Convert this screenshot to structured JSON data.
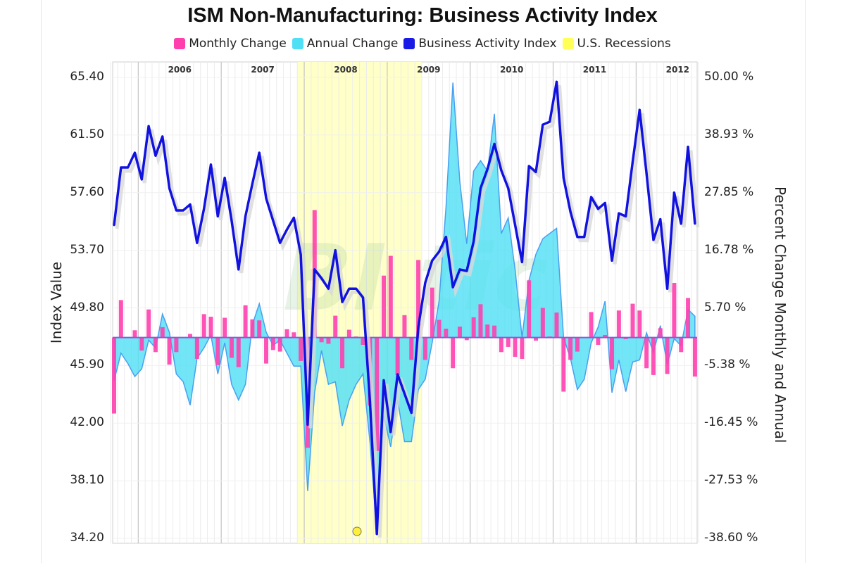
{
  "chart_data": {
    "type": "bar+area+line",
    "title": "ISM Non-Manufacturing: Business Activity Index",
    "legend": [
      {
        "name": "Monthly Change",
        "color": "#ff3fae"
      },
      {
        "name": "Annual Change",
        "color": "#4fe0f5"
      },
      {
        "name": "Business Activity Index",
        "color": "#1a1ae6"
      },
      {
        "name": "U.S. Recessions",
        "color": "#ffff55"
      }
    ],
    "legend_position": "top-center",
    "ylabel_left": "Index Value",
    "ylabel_right": "Percent Change Monthly and Annual",
    "yticks_left": [
      "65.40",
      "61.50",
      "57.60",
      "53.70",
      "49.80",
      "45.90",
      "42.00",
      "38.10",
      "34.20"
    ],
    "ylim_left": [
      34.2,
      65.4
    ],
    "yticks_right": [
      "50.00 %",
      "38.93 %",
      "27.85 %",
      "16.78 %",
      "5.70 %",
      "-5.38 %",
      "-16.45 %",
      "-27.53 %",
      "-38.60 %"
    ],
    "ylim_right": [
      -38.6,
      50.0
    ],
    "x_start_month": "2005-09",
    "year_labels": [
      "2006",
      "2007",
      "2008",
      "2009",
      "2010",
      "2011",
      "2012"
    ],
    "recession": {
      "start": "2007-12",
      "end": "2009-06"
    },
    "grid": true,
    "series": [
      {
        "name": "Business Activity Index",
        "axis": "left",
        "type": "line",
        "values": [
          55.4,
          59.3,
          59.3,
          60.3,
          58.5,
          62.1,
          60.1,
          61.4,
          57.9,
          56.4,
          56.4,
          56.8,
          54.2,
          56.5,
          59.5,
          56.0,
          58.6,
          55.7,
          52.4,
          56.0,
          58.2,
          60.3,
          57.2,
          55.7,
          54.2,
          55.1,
          55.9,
          53.4,
          41.9,
          52.4,
          51.8,
          51.1,
          53.7,
          50.2,
          51.1,
          51.1,
          50.5,
          43.5,
          34.5,
          44.9,
          41.4,
          45.3,
          44.0,
          42.7,
          48.5,
          51.5,
          53.0,
          53.6,
          54.6,
          51.2,
          52.4,
          52.3,
          54.3,
          57.9,
          59.2,
          60.9,
          59.1,
          57.9,
          55.4,
          52.9,
          59.4,
          59.0,
          62.2,
          62.4,
          65.1,
          58.6,
          56.3,
          54.6,
          54.6,
          57.3,
          56.5,
          56.9,
          53.0,
          56.2,
          56.0,
          59.7,
          63.2,
          58.9,
          54.4,
          55.8,
          51.1,
          57.6,
          55.5,
          60.7,
          55.5
        ]
      },
      {
        "name": "Monthly Change",
        "axis": "right",
        "type": "bar",
        "values": [
          -14.6,
          7.2,
          0,
          1.4,
          -2.5,
          5.4,
          -2.8,
          2.0,
          -5.2,
          -2.8,
          0,
          0.7,
          -4.1,
          4.5,
          4.0,
          -5.3,
          3.8,
          -3.9,
          -5.7,
          6.2,
          3.5,
          3.3,
          -5.0,
          -2.4,
          -2.7,
          1.6,
          1.0,
          -4.5,
          -21.2,
          24.5,
          -0.9,
          -1.2,
          4.2,
          -5.9,
          1.5,
          0.2,
          -1.4,
          -13.1,
          -21.8,
          11.9,
          15.7,
          -7.2,
          4.3,
          -4.3,
          14.9,
          -4.3,
          9.6,
          3.4,
          1.7,
          -5.9,
          2.1,
          -0.5,
          3.9,
          6.4,
          2.5,
          2.3,
          -2.8,
          -1.8,
          -3.7,
          -4.1,
          11.0,
          -0.6,
          5.7,
          0.2,
          4.8,
          -10.4,
          -4.3,
          -2.7,
          0,
          4.9,
          -1.4,
          0.5,
          -6.1,
          5.2,
          -0.3,
          6.5,
          5.2,
          -5.9,
          -7.2,
          1.8,
          -7.0,
          10.5,
          -2.8,
          7.6,
          -7.5
        ]
      },
      {
        "name": "Annual Change",
        "axis": "right",
        "type": "area",
        "values": [
          -8.3,
          -3,
          -5,
          -7.5,
          -6,
          -0.5,
          -2,
          4.5,
          1,
          -7,
          -8.5,
          -13,
          -4,
          -2,
          0.5,
          -7,
          -1,
          -9,
          -12,
          -9,
          2.5,
          6.5,
          1,
          -1.5,
          -0.5,
          -3,
          -5.5,
          -5.5,
          -29.5,
          -10.6,
          -2.5,
          -9,
          -8.5,
          -17,
          -12,
          -9,
          -7,
          -20,
          -37,
          -15,
          -21,
          -12,
          -20,
          -20,
          -10,
          -8,
          -1,
          7,
          25,
          49,
          30,
          18,
          32,
          34,
          32,
          43,
          20,
          23,
          13,
          0,
          11,
          16,
          19,
          20,
          21,
          0,
          -4,
          -10,
          -8,
          -1,
          2,
          7,
          -10.6,
          -4.3,
          -10.4,
          -4.7,
          -4.3,
          0.9,
          -2.9,
          2.3,
          -5.2,
          -0.2,
          -1.6,
          5.4,
          4.1
        ]
      }
    ]
  }
}
